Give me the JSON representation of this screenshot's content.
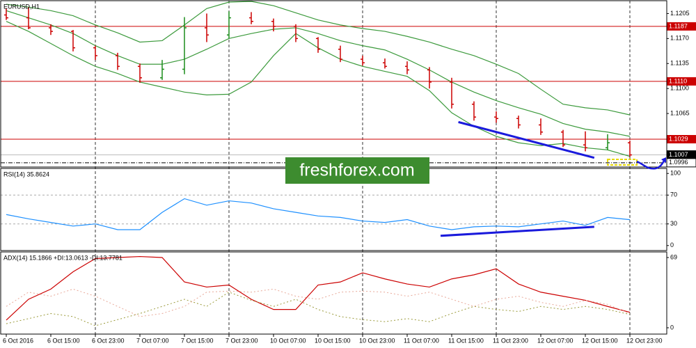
{
  "chart_data": [
    {
      "type": "candlestick",
      "title": "EURUSD,H1",
      "categories": [
        "6 Oct 2016",
        null,
        "6 Oct 15:00",
        null,
        "6 Oct 23:00",
        null,
        "7 Oct 07:00",
        null,
        "7 Oct 15:00",
        null,
        "7 Oct 23:00",
        null,
        "10 Oct 07:00",
        null,
        "10 Oct 15:00",
        null,
        "10 Oct 23:00",
        null,
        "11 Oct 07:00",
        null,
        "11 Oct 15:00",
        null,
        "11 Oct 23:00",
        null,
        "12 Oct 07:00",
        null,
        "12 Oct 15:00",
        null,
        "12 Oct 23:00"
      ],
      "open": [
        1.1203,
        1.1199,
        1.1185,
        1.118,
        1.1157,
        1.1146,
        1.1131,
        1.1115,
        1.1127,
        1.1185,
        1.1175,
        1.1199,
        1.1194,
        1.1187,
        1.117,
        1.1155,
        1.1141,
        1.1136,
        1.1131,
        1.1126,
        1.1109,
        1.1078,
        1.106,
        1.1058,
        1.1049,
        1.1039,
        1.1021,
        1.1017,
        1.1024
      ],
      "high": [
        1.1212,
        1.1214,
        1.119,
        1.1182,
        1.116,
        1.115,
        1.1135,
        1.114,
        1.12,
        1.1205,
        1.1208,
        1.1207,
        1.1198,
        1.119,
        1.1172,
        1.116,
        1.1146,
        1.1142,
        1.1138,
        1.113,
        1.1115,
        1.1082,
        1.1068,
        1.1062,
        1.1058,
        1.1042,
        1.104,
        1.1036,
        1.1027
      ],
      "low": [
        1.1196,
        1.1183,
        1.1175,
        1.1152,
        1.114,
        1.1126,
        1.1108,
        1.1112,
        1.112,
        1.1165,
        1.117,
        1.119,
        1.118,
        1.1165,
        1.115,
        1.1137,
        1.1132,
        1.1128,
        1.112,
        1.11,
        1.1072,
        1.1055,
        1.1052,
        1.1044,
        1.1035,
        1.1018,
        1.1012,
        1.1014,
        1.1004
      ],
      "close": [
        1.1199,
        1.1185,
        1.118,
        1.1157,
        1.1146,
        1.1131,
        1.1115,
        1.1127,
        1.1185,
        1.1175,
        1.1199,
        1.1194,
        1.1187,
        1.117,
        1.1155,
        1.1141,
        1.1136,
        1.1131,
        1.1126,
        1.1109,
        1.1078,
        1.106,
        1.1058,
        1.1049,
        1.1039,
        1.1021,
        1.1017,
        1.1024,
        1.1007
      ],
      "up_color": "#1a8c1a",
      "down_color": "#cc0000",
      "series": [
        {
          "color": "#3c9a3c",
          "values": [
            1.1218,
            1.1214,
            1.1209,
            1.1202,
            1.1189,
            1.1178,
            1.1165,
            1.1167,
            1.1189,
            1.1212,
            1.1221,
            1.1222,
            1.1216,
            1.1206,
            1.1196,
            1.1189,
            1.1184,
            1.118,
            1.1173,
            1.1165,
            1.1155,
            1.1146,
            1.1134,
            1.1121,
            1.1099,
            1.1078,
            1.1073,
            1.107,
            1.1063
          ]
        },
        {
          "color": "#3c9a3c",
          "values": [
            1.1209,
            1.1199,
            1.1189,
            1.1177,
            1.116,
            1.1146,
            1.1134,
            1.1134,
            1.1141,
            1.1155,
            1.117,
            1.1177,
            1.1183,
            1.1185,
            1.1177,
            1.1167,
            1.116,
            1.1154,
            1.1141,
            1.1126,
            1.1109,
            1.1095,
            1.1083,
            1.1073,
            1.1064,
            1.1051,
            1.1043,
            1.1039,
            1.1033
          ]
        },
        {
          "color": "#3c9a3c",
          "values": [
            1.1194,
            1.118,
            1.1163,
            1.1146,
            1.1131,
            1.1121,
            1.1109,
            1.1102,
            1.1095,
            1.1091,
            1.1092,
            1.1109,
            1.1146,
            1.1177,
            1.1157,
            1.1141,
            1.1131,
            1.1124,
            1.1117,
            1.1097,
            1.1066,
            1.1047,
            1.1033,
            1.1024,
            1.102,
            1.1023,
            1.1017,
            1.1014,
            1.1005
          ]
        }
      ],
      "ylim": [
        1.099,
        1.1222
      ],
      "yticks": [
        1.1205,
        {
          "value": 1.117,
          "label": "1.1170"
        },
        1.1135,
        {
          "value": 1.11,
          "label": "1.1100"
        },
        1.1065
      ],
      "levels": [
        1.1187,
        {
          "value": 1.111,
          "label": "1.1110"
        },
        1.1029
      ],
      "level_color": "#cc0000",
      "price_labels": [
        1.1007,
        1.0996
      ],
      "trendline": {
        "x": [
          20.3,
          26.4
        ],
        "y": [
          1.1053,
          1.1003
        ],
        "color": "#1a1adc"
      },
      "watermark": "freshforex.com"
    },
    {
      "type": "line",
      "title": "RSI(14) 35.8624",
      "series": [
        {
          "color": "#1e90ff",
          "values": [
            43,
            37,
            32,
            27,
            30,
            22,
            22,
            46,
            65,
            56,
            62,
            59,
            51,
            46,
            41,
            39,
            34,
            32,
            36,
            27,
            22,
            26,
            27,
            26,
            30,
            34,
            28,
            39,
            35.9
          ]
        }
      ],
      "ylim": [
        -6,
        106
      ],
      "yticks": [
        0,
        30,
        70,
        100
      ],
      "levels": [
        30,
        70
      ],
      "trendline": {
        "x": [
          19.5,
          26.4
        ],
        "y": [
          13.5,
          26
        ],
        "color": "#1a1adc"
      }
    },
    {
      "type": "line",
      "title": "ADX(14) 15.1866 +DI:13.0613 -DI:13.7781",
      "series": [
        {
          "color": "#cc0000",
          "values": [
            7.5,
            28,
            38,
            55,
            68,
            69,
            70,
            69,
            45,
            40,
            42,
            28,
            18,
            18,
            42,
            45,
            54,
            48,
            43,
            40,
            48,
            52,
            58,
            43,
            35,
            31,
            27,
            21,
            15.2
          ]
        },
        {
          "color": "#9a9a3a",
          "dash": true,
          "values": [
            4,
            9,
            14,
            11,
            2,
            8,
            14,
            21,
            28,
            21,
            35,
            27,
            21,
            28,
            18,
            11,
            8,
            6,
            9,
            6,
            14,
            21,
            18,
            16,
            21,
            18,
            21,
            18,
            13.1
          ]
        },
        {
          "color": "#e8a898",
          "dash": true,
          "values": [
            21,
            35,
            31,
            38,
            31,
            21,
            11,
            14,
            21,
            35,
            36,
            35,
            38,
            31,
            28,
            35,
            36,
            35,
            31,
            35,
            28,
            21,
            28,
            31,
            25,
            21,
            27,
            23,
            13.8
          ]
        }
      ],
      "ylim": [
        -5.5,
        73.8
      ],
      "yticks": [
        0,
        69
      ]
    }
  ]
}
